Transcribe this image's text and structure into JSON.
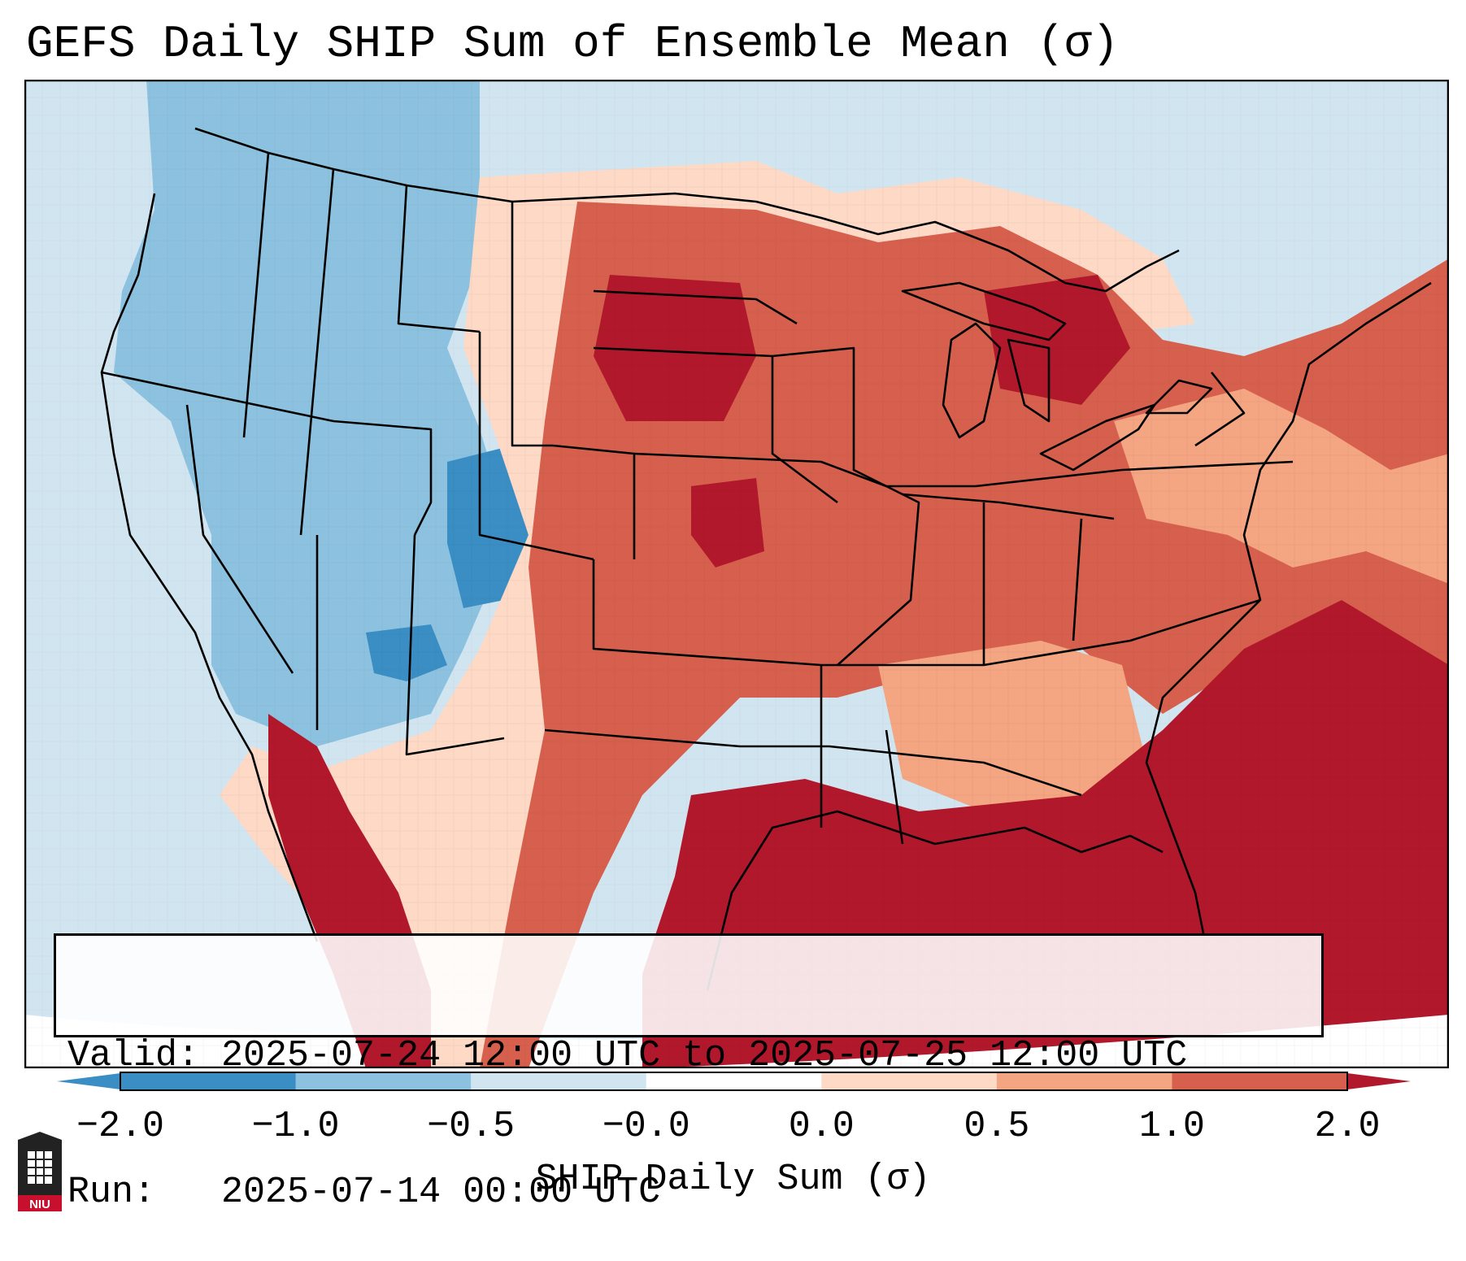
{
  "title": "GEFS Daily SHIP Sum of Ensemble Mean (σ)",
  "info": {
    "valid": "Valid: 2025-07-24 12:00 UTC to 2025-07-25 12:00 UTC",
    "run": "Run:   2025-07-14 00:00 UTC"
  },
  "colorbar": {
    "label": "SHIP Daily Sum (σ)",
    "ticks": [
      "−2.0",
      "−1.0",
      "−0.5",
      "−0.0",
      "0.0",
      "0.5",
      "1.0",
      "2.0"
    ],
    "colors": [
      "#3a8ec4",
      "#8cc2df",
      "#d1e5f0",
      "#ffffff",
      "#fdd9c6",
      "#f4a582",
      "#d6604d",
      "#b2182b"
    ]
  },
  "logo": {
    "text": "NIU",
    "name": "niu-logo"
  },
  "map": {
    "ocean_color": "#d1e5f0",
    "regions": {
      "far_west": "#d1e5f0",
      "intermountain": "#8cc2df",
      "core_negative": "#3a8ec4",
      "plains_neutral": "#fdd9c6",
      "central": "#d6604d",
      "gulf_southeast": "#b2182b",
      "northeast": "#f4a582"
    }
  }
}
